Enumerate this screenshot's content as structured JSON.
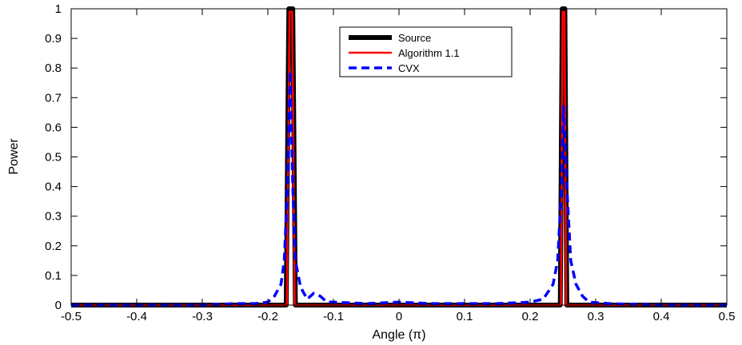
{
  "chart_data": {
    "type": "line",
    "xlabel": "Angle (π)",
    "ylabel": "Power",
    "xlim": [
      -0.5,
      0.5
    ],
    "ylim": [
      0,
      1
    ],
    "x_ticks": [
      -0.5,
      -0.4,
      -0.3,
      -0.2,
      -0.1,
      0,
      0.1,
      0.2,
      0.3,
      0.4,
      0.5
    ],
    "x_tick_labels": [
      "-0.5",
      "-0.4",
      "-0.3",
      "-0.2",
      "-0.1",
      "0",
      "0.1",
      "0.2",
      "0.3",
      "0.4",
      "0.5"
    ],
    "y_ticks": [
      0,
      0.1,
      0.2,
      0.3,
      0.4,
      0.5,
      0.6,
      0.7,
      0.8,
      0.9,
      1
    ],
    "y_tick_labels": [
      "0",
      "0.1",
      "0.2",
      "0.3",
      "0.4",
      "0.5",
      "0.6",
      "0.7",
      "0.8",
      "0.9",
      "1"
    ],
    "grid": false,
    "legend_position": "top-center",
    "series": [
      {
        "name": "Source",
        "color": "#000000",
        "style": "solid-thick",
        "points": [
          [
            -0.5,
            0
          ],
          [
            -0.172,
            0
          ],
          [
            -0.168,
            1
          ],
          [
            -0.162,
            1
          ],
          [
            -0.158,
            0
          ],
          [
            0.246,
            0
          ],
          [
            0.249,
            1
          ],
          [
            0.253,
            1
          ],
          [
            0.256,
            0
          ],
          [
            0.5,
            0
          ]
        ]
      },
      {
        "name": "Algorithm 1.1",
        "color": "#ff0000",
        "style": "solid",
        "points": [
          [
            -0.5,
            0
          ],
          [
            -0.171,
            0
          ],
          [
            -0.167,
            0.99
          ],
          [
            -0.163,
            0.99
          ],
          [
            -0.159,
            0
          ],
          [
            0.247,
            0
          ],
          [
            0.2495,
            0.99
          ],
          [
            0.2525,
            0.99
          ],
          [
            0.255,
            0
          ],
          [
            0.5,
            0
          ]
        ]
      },
      {
        "name": "CVX",
        "color": "#0000ff",
        "style": "dashed",
        "points": [
          [
            -0.5,
            0.0
          ],
          [
            -0.3,
            0.0
          ],
          [
            -0.25,
            0.005
          ],
          [
            -0.22,
            0.005
          ],
          [
            -0.2,
            0.01
          ],
          [
            -0.19,
            0.03
          ],
          [
            -0.18,
            0.07
          ],
          [
            -0.175,
            0.15
          ],
          [
            -0.17,
            0.4
          ],
          [
            -0.166,
            0.79
          ],
          [
            -0.162,
            0.4
          ],
          [
            -0.158,
            0.15
          ],
          [
            -0.15,
            0.06
          ],
          [
            -0.14,
            0.02
          ],
          [
            -0.13,
            0.04
          ],
          [
            -0.12,
            0.03
          ],
          [
            -0.11,
            0.01
          ],
          [
            -0.1,
            0.01
          ],
          [
            -0.05,
            0.005
          ],
          [
            0,
            0.01
          ],
          [
            0.05,
            0.005
          ],
          [
            0.1,
            0.005
          ],
          [
            0.15,
            0.005
          ],
          [
            0.2,
            0.01
          ],
          [
            0.22,
            0.02
          ],
          [
            0.235,
            0.07
          ],
          [
            0.242,
            0.15
          ],
          [
            0.248,
            0.4
          ],
          [
            0.251,
            0.67
          ],
          [
            0.256,
            0.4
          ],
          [
            0.262,
            0.15
          ],
          [
            0.27,
            0.07
          ],
          [
            0.28,
            0.03
          ],
          [
            0.29,
            0.01
          ],
          [
            0.32,
            0.005
          ],
          [
            0.4,
            0.0
          ],
          [
            0.5,
            0.0
          ]
        ]
      }
    ]
  }
}
